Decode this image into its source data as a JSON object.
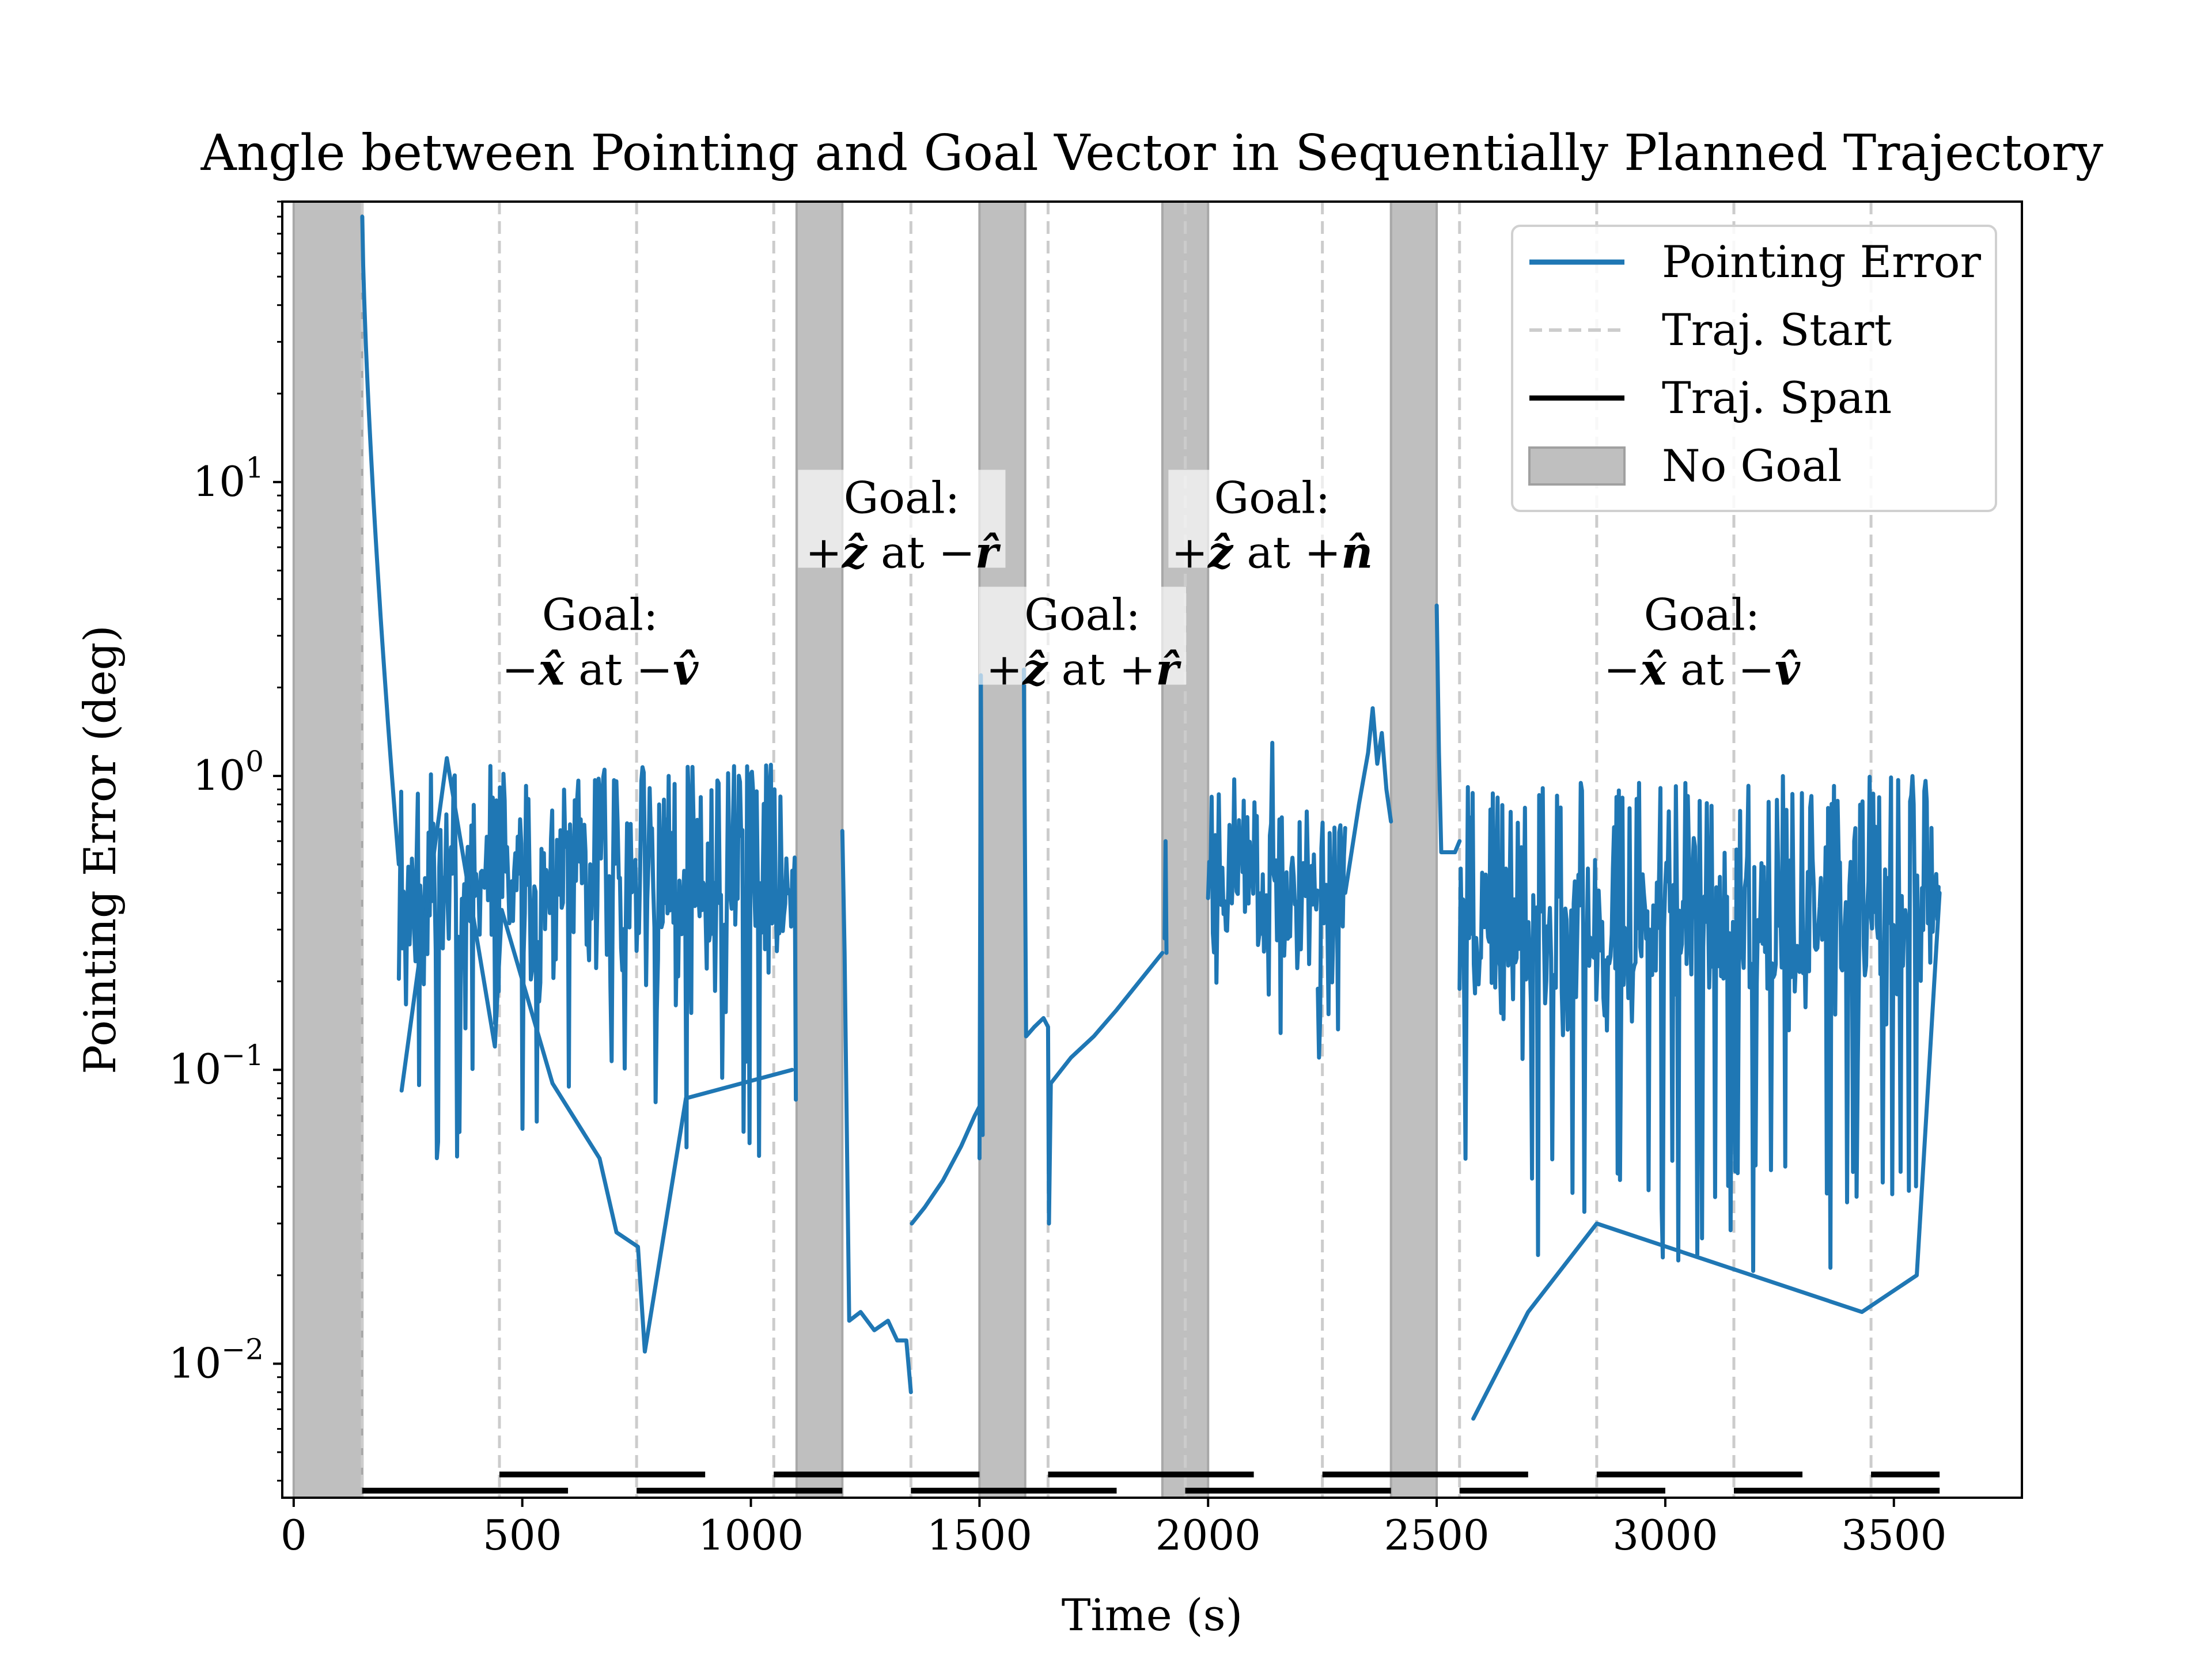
{
  "chart_data": {
    "type": "line",
    "title": "Angle between Pointing and Goal Vector in Sequentially Planned Trajectory",
    "xlabel": "Time (s)",
    "ylabel": "Pointing Error (deg)",
    "xlim": [
      -25,
      3780
    ],
    "ylim": [
      0.0035,
      90
    ],
    "yscale": "log",
    "x_ticks": [
      0,
      500,
      1000,
      1500,
      2000,
      2500,
      3000,
      3500
    ],
    "y_ticks": [
      {
        "base": "10",
        "exp": "−2",
        "value": 0.01
      },
      {
        "base": "10",
        "exp": "−1",
        "value": 0.1
      },
      {
        "base": "10",
        "exp": "0",
        "value": 1
      },
      {
        "base": "10",
        "exp": "1",
        "value": 10
      }
    ],
    "legend": {
      "placement": "top-right",
      "entries": [
        {
          "label": "Pointing Error",
          "kind": "line",
          "color": "#1f77b4"
        },
        {
          "label": "Traj. Start",
          "kind": "dashed",
          "color": "#cccccc"
        },
        {
          "label": "Traj. Span",
          "kind": "line",
          "color": "#000000"
        },
        {
          "label": "No Goal",
          "kind": "patch",
          "color": "#bfbfbf"
        }
      ]
    },
    "no_goal_intervals": [
      [
        0,
        150
      ],
      [
        1100,
        1200
      ],
      [
        1500,
        1600
      ],
      [
        1900,
        2000
      ],
      [
        2400,
        2500
      ]
    ],
    "traj_starts": [
      150,
      450,
      750,
      1050,
      1350,
      1650,
      1950,
      2250,
      2550,
      2850,
      3150,
      3450
    ],
    "traj_spans": [
      {
        "start": 150,
        "end": 600,
        "level": 0.0037
      },
      {
        "start": 450,
        "end": 900,
        "level": 0.0042
      },
      {
        "start": 750,
        "end": 1200,
        "level": 0.0037
      },
      {
        "start": 1050,
        "end": 1500,
        "level": 0.0042
      },
      {
        "start": 1350,
        "end": 1800,
        "level": 0.0037
      },
      {
        "start": 1650,
        "end": 2100,
        "level": 0.0042
      },
      {
        "start": 1950,
        "end": 2400,
        "level": 0.0037
      },
      {
        "start": 2250,
        "end": 2700,
        "level": 0.0042
      },
      {
        "start": 2550,
        "end": 3000,
        "level": 0.0037
      },
      {
        "start": 2850,
        "end": 3300,
        "level": 0.0042
      },
      {
        "start": 3150,
        "end": 3600,
        "level": 0.0037
      },
      {
        "start": 3450,
        "end": 3600,
        "level": 0.0042
      }
    ],
    "annotations": [
      {
        "line1": "Goal:",
        "sign1": "−",
        "vec1": "x̂",
        "at": " at ",
        "sign2": "−",
        "vec2": "v̂",
        "x": 670,
        "y": 3.0,
        "box": false
      },
      {
        "line1": "Goal:",
        "sign1": "+",
        "vec1": "ẑ",
        "at": " at ",
        "sign2": "−",
        "vec2": "r̂",
        "x": 1330,
        "y": 7.5,
        "box": true
      },
      {
        "line1": "Goal:",
        "sign1": "+",
        "vec1": "ẑ",
        "at": " at ",
        "sign2": "+",
        "vec2": "r̂",
        "x": 1725,
        "y": 3.0,
        "box": true
      },
      {
        "line1": "Goal:",
        "sign1": "+",
        "vec1": "ẑ",
        "at": " at ",
        "sign2": "+",
        "vec2": "n̂",
        "x": 2140,
        "y": 7.5,
        "box": true
      },
      {
        "line1": "Goal:",
        "sign1": "−",
        "vec1": "x̂",
        "at": " at ",
        "sign2": "−",
        "vec2": "v̂",
        "x": 3080,
        "y": 3.0,
        "box": false
      }
    ],
    "series": [
      {
        "name": "Pointing Error",
        "color": "#1f77b4",
        "segments": [
          {
            "kind": "decay",
            "t0": 150,
            "t1": 230,
            "y0": 80,
            "y1": 0.5
          },
          {
            "kind": "noise",
            "t0": 230,
            "t1": 1100,
            "center": 0.4,
            "hi": 1.1,
            "lo": 0.05,
            "seed": 11
          },
          {
            "kind": "points",
            "pts": [
              [
                236,
                0.085
              ],
              [
                335,
                1.15
              ],
              [
                440,
                0.12
              ],
              [
                455,
                0.35
              ],
              [
                566,
                0.09
              ],
              [
                669,
                0.05
              ],
              [
                706,
                0.028
              ],
              [
                753,
                0.025
              ],
              [
                768,
                0.011
              ],
              [
                858,
                0.08
              ],
              [
                1090,
                0.1
              ]
            ]
          },
          {
            "kind": "points",
            "pts": [
              [
                1200,
                0.65
              ],
              [
                1205,
                0.25
              ],
              [
                1215,
                0.014
              ],
              [
                1240,
                0.015
              ],
              [
                1270,
                0.013
              ],
              [
                1300,
                0.014
              ],
              [
                1320,
                0.012
              ],
              [
                1340,
                0.012
              ],
              [
                1350,
                0.008
              ]
            ]
          },
          {
            "kind": "points",
            "pts": [
              [
                1352,
                0.03
              ],
              [
                1380,
                0.034
              ],
              [
                1420,
                0.042
              ],
              [
                1460,
                0.055
              ],
              [
                1490,
                0.07
              ],
              [
                1500,
                0.075
              ]
            ]
          },
          {
            "kind": "points",
            "pts": [
              [
                1500,
                0.05
              ],
              [
                1503,
                2.2
              ],
              [
                1507,
                0.06
              ]
            ]
          },
          {
            "kind": "points",
            "pts": [
              [
                1597,
                2.3
              ],
              [
                1602,
                0.13
              ],
              [
                1620,
                0.14
              ],
              [
                1640,
                0.15
              ],
              [
                1650,
                0.14
              ],
              [
                1652,
                0.03
              ],
              [
                1656,
                0.09
              ]
            ]
          },
          {
            "kind": "points",
            "pts": [
              [
                1656,
                0.09
              ],
              [
                1700,
                0.11
              ],
              [
                1750,
                0.13
              ],
              [
                1800,
                0.16
              ],
              [
                1850,
                0.2
              ],
              [
                1900,
                0.25
              ]
            ]
          },
          {
            "kind": "points",
            "pts": [
              [
                1905,
                0.28
              ],
              [
                1907,
                0.6
              ],
              [
                1909,
                0.25
              ]
            ]
          },
          {
            "kind": "noise",
            "t0": 2000,
            "t1": 2240,
            "center": 0.4,
            "hi": 0.9,
            "lo": 0.2,
            "seed": 23
          },
          {
            "kind": "noise",
            "t0": 2240,
            "t1": 2300,
            "center": 0.3,
            "hi": 0.7,
            "lo": 0.05,
            "seed": 31
          },
          {
            "kind": "points",
            "pts": [
              [
                2300,
                0.4
              ],
              [
                2330,
                0.8
              ],
              [
                2350,
                1.2
              ],
              [
                2360,
                1.7
              ],
              [
                2370,
                1.1
              ],
              [
                2380,
                1.4
              ],
              [
                2390,
                0.9
              ],
              [
                2400,
                0.7
              ]
            ]
          },
          {
            "kind": "points",
            "pts": [
              [
                2500,
                3.8
              ],
              [
                2505,
                1.2
              ],
              [
                2510,
                0.55
              ],
              [
                2540,
                0.55
              ],
              [
                2550,
                0.6
              ]
            ]
          },
          {
            "kind": "noise",
            "t0": 2550,
            "t1": 3600,
            "center": 0.3,
            "hi": 1.0,
            "lo": 0.02,
            "seed": 47
          },
          {
            "kind": "points",
            "pts": [
              [
                2580,
                0.0065
              ],
              [
                2700,
                0.015
              ],
              [
                2850,
                0.03
              ],
              [
                3430,
                0.015
              ],
              [
                3550,
                0.02
              ],
              [
                3600,
                0.4
              ]
            ]
          }
        ]
      }
    ]
  }
}
